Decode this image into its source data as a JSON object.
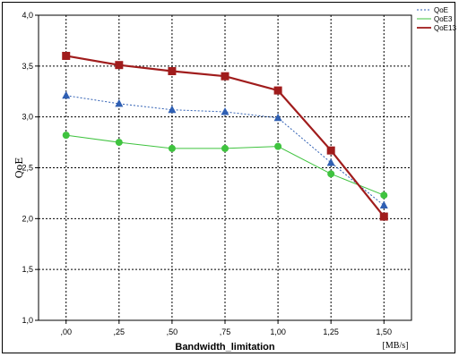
{
  "chart_data": {
    "type": "line",
    "xlabel": "Bandwidth_limitation",
    "ylabel": "QoE",
    "unit_label": "[MB/s]",
    "x_tick_labels": [
      ",00",
      ",25",
      ",50",
      ",75",
      "1,00",
      "1,25",
      "1,50"
    ],
    "y_tick_labels": [
      "1,0",
      "1,5",
      "2,0",
      "2,5",
      "3,0",
      "3,5",
      "4,0"
    ],
    "x": [
      0.0,
      0.25,
      0.5,
      0.75,
      1.0,
      1.25,
      1.5
    ],
    "xlim": [
      -0.13,
      1.63
    ],
    "ylim": [
      1.0,
      4.0
    ],
    "grid": true,
    "legend_position": "top-right",
    "series": [
      {
        "name": "QoE",
        "values": [
          3.21,
          3.13,
          3.07,
          3.05,
          2.99,
          2.55,
          2.13
        ],
        "color": "#2f5fb3",
        "marker": "triangle",
        "line": "dotted"
      },
      {
        "name": "QoE3",
        "values": [
          2.82,
          2.75,
          2.69,
          2.69,
          2.71,
          2.44,
          2.23
        ],
        "color": "#3fc33f",
        "marker": "circle",
        "line": "solid"
      },
      {
        "name": "QoE13",
        "values": [
          3.6,
          3.51,
          3.45,
          3.4,
          3.26,
          2.67,
          2.02
        ],
        "color": "#a01c1c",
        "marker": "square",
        "line": "thick"
      }
    ]
  }
}
